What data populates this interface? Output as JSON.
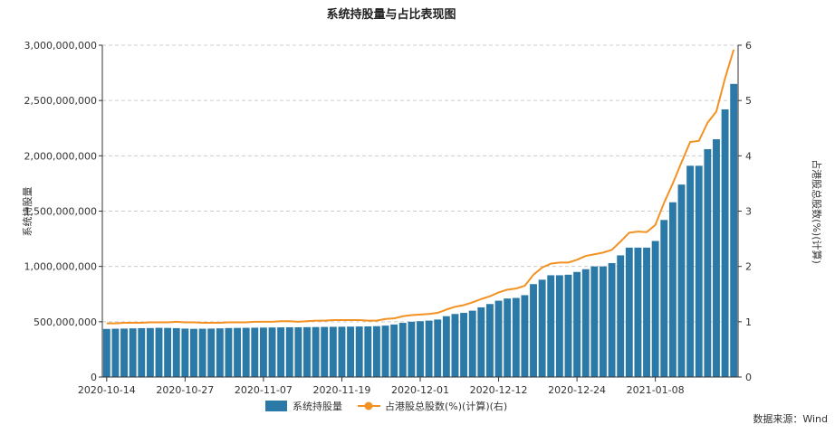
{
  "chart_data": {
    "type": "bar",
    "title": "系统持股量与占比表现图",
    "ylabel_left": "系统持股量",
    "ylabel_right": "占港股总股数(%)(计算)",
    "ylim_left": [
      0,
      3000000000
    ],
    "ylim_right": [
      0,
      6
    ],
    "y_ticks_left": [
      "0",
      "500,000,000",
      "1,000,000,000",
      "1,500,000,000",
      "2,000,000,000",
      "2,500,000,000",
      "3,000,000,000"
    ],
    "y_ticks_right": [
      "0",
      "1",
      "2",
      "3",
      "4",
      "5",
      "6"
    ],
    "x_tick_labels": [
      {
        "label": "2020-10-14",
        "index": 0
      },
      {
        "label": "2020-10-27",
        "index": 9
      },
      {
        "label": "2020-11-07",
        "index": 18
      },
      {
        "label": "2020-11-19",
        "index": 27
      },
      {
        "label": "2020-12-01",
        "index": 36
      },
      {
        "label": "2020-12-12",
        "index": 45
      },
      {
        "label": "2020-12-24",
        "index": 54
      },
      {
        "label": "2021-01-08",
        "index": 63
      }
    ],
    "grid": true,
    "legend_position": "bottom",
    "series": [
      {
        "name": "系统持股量",
        "kind": "bar",
        "axis": "left",
        "color": "#2a79a6",
        "values": [
          435000000,
          437000000,
          438000000,
          440000000,
          442000000,
          443000000,
          445000000,
          444000000,
          442000000,
          438000000,
          436000000,
          437000000,
          438000000,
          440000000,
          443000000,
          444000000,
          445000000,
          446000000,
          447000000,
          448000000,
          449000000,
          450000000,
          450000000,
          451000000,
          452000000,
          453000000,
          454000000,
          455000000,
          456000000,
          457000000,
          458000000,
          460000000,
          465000000,
          475000000,
          490000000,
          500000000,
          505000000,
          510000000,
          520000000,
          550000000,
          570000000,
          580000000,
          600000000,
          630000000,
          660000000,
          690000000,
          710000000,
          715000000,
          740000000,
          840000000,
          880000000,
          920000000,
          920000000,
          925000000,
          950000000,
          975000000,
          1000000000,
          1000000000,
          1030000000,
          1100000000,
          1170000000,
          1170000000,
          1170000000,
          1230000000,
          1420000000,
          1580000000,
          1740000000,
          1910000000,
          1910000000,
          2060000000,
          2150000000,
          2420000000,
          2650000000
        ]
      },
      {
        "name": "占港股总股数(%)(计算)(右)",
        "kind": "line",
        "axis": "right",
        "color": "#f39222",
        "values": [
          0.97,
          0.97,
          0.98,
          0.98,
          0.98,
          0.99,
          0.99,
          0.99,
          1.0,
          0.99,
          0.99,
          0.98,
          0.98,
          0.98,
          0.99,
          0.99,
          0.99,
          1.0,
          1.0,
          1.0,
          1.01,
          1.01,
          1.0,
          1.01,
          1.02,
          1.02,
          1.03,
          1.03,
          1.03,
          1.03,
          1.02,
          1.02,
          1.05,
          1.06,
          1.1,
          1.12,
          1.13,
          1.14,
          1.16,
          1.22,
          1.27,
          1.3,
          1.35,
          1.41,
          1.46,
          1.53,
          1.58,
          1.6,
          1.65,
          1.85,
          1.98,
          2.05,
          2.07,
          2.07,
          2.12,
          2.19,
          2.22,
          2.25,
          2.3,
          2.45,
          2.61,
          2.63,
          2.62,
          2.75,
          3.15,
          3.5,
          3.88,
          4.25,
          4.27,
          4.6,
          4.8,
          5.4,
          5.92
        ]
      }
    ]
  },
  "legend": {
    "bar_label": "系统持股量",
    "line_label": "占港股总股数(%)(计算)(右)"
  },
  "source_text": "数据来源：Wind",
  "colors": {
    "bar": "#2a79a6",
    "line": "#f39222",
    "grid": "#cccccc",
    "axis": "#333333"
  }
}
